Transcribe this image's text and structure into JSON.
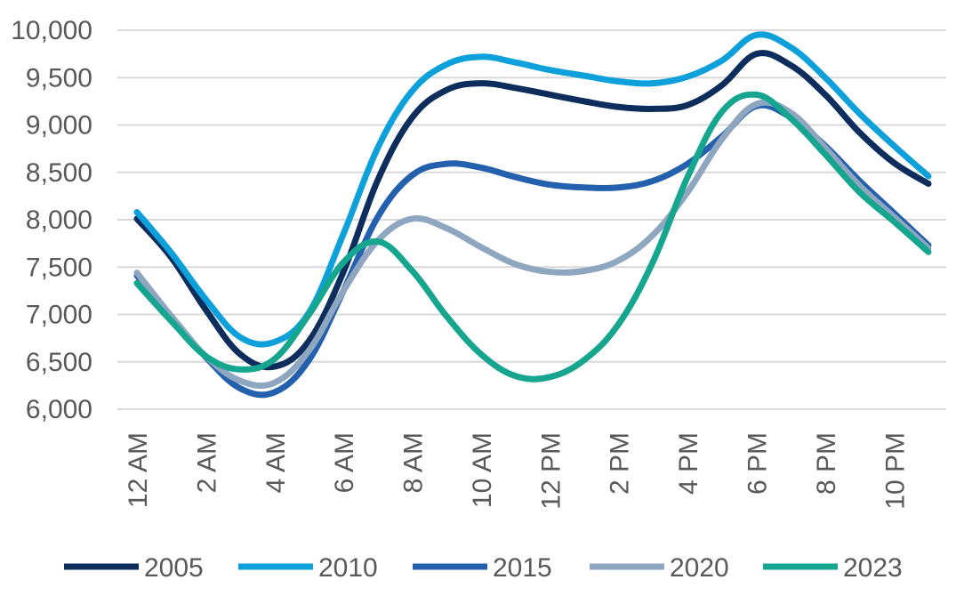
{
  "chart_data": {
    "type": "line",
    "title": "",
    "xlabel": "",
    "ylabel": "",
    "ylim": [
      6000,
      10000
    ],
    "yticks": [
      6000,
      6500,
      7000,
      7500,
      8000,
      8500,
      9000,
      9500,
      10000
    ],
    "ytick_labels": [
      "6,000",
      "6,500",
      "7,000",
      "7,500",
      "8,000",
      "8,500",
      "9,000",
      "9,500",
      "10,000"
    ],
    "x": [
      0,
      1,
      2,
      3,
      4,
      5,
      6,
      7,
      8,
      9,
      10,
      11,
      12,
      13,
      14,
      15,
      16,
      17,
      18,
      19,
      20,
      21,
      22,
      23
    ],
    "xtick_positions": [
      0,
      2,
      4,
      6,
      8,
      10,
      12,
      14,
      16,
      18,
      20,
      22
    ],
    "xtick_labels": [
      "12 AM",
      "2 AM",
      "4 AM",
      "6 AM",
      "8 AM",
      "10 AM",
      "12 PM",
      "2 PM",
      "4 PM",
      "6 PM",
      "8 PM",
      "10 PM"
    ],
    "grid": true,
    "legend_position": "bottom",
    "series": [
      {
        "name": "2005",
        "color": "#0d2d5c",
        "values": [
          8010,
          7600,
          7050,
          6580,
          6450,
          6720,
          7450,
          8420,
          9080,
          9370,
          9440,
          9390,
          9320,
          9250,
          9190,
          9170,
          9210,
          9420,
          9750,
          9630,
          9320,
          8920,
          8600,
          8380
        ]
      },
      {
        "name": "2010",
        "color": "#0ea0db",
        "values": [
          8080,
          7650,
          7160,
          6760,
          6710,
          7020,
          7850,
          8760,
          9360,
          9640,
          9720,
          9660,
          9580,
          9520,
          9460,
          9440,
          9510,
          9680,
          9950,
          9820,
          9500,
          9120,
          8780,
          8460
        ]
      },
      {
        "name": "2015",
        "color": "#2360ad",
        "values": [
          7410,
          6980,
          6550,
          6220,
          6180,
          6520,
          7250,
          8030,
          8470,
          8590,
          8550,
          8450,
          8370,
          8340,
          8340,
          8410,
          8590,
          8880,
          9200,
          9080,
          8780,
          8410,
          8070,
          7730
        ]
      },
      {
        "name": "2020",
        "color": "#8fa6c0",
        "values": [
          7440,
          6980,
          6560,
          6300,
          6280,
          6620,
          7250,
          7780,
          8010,
          7910,
          7710,
          7530,
          7450,
          7460,
          7570,
          7840,
          8290,
          8850,
          9220,
          9130,
          8760,
          8360,
          8030,
          7700
        ]
      },
      {
        "name": "2023",
        "color": "#16a58f",
        "values": [
          7330,
          6930,
          6560,
          6420,
          6530,
          7000,
          7550,
          7770,
          7460,
          6980,
          6580,
          6350,
          6340,
          6520,
          6900,
          7560,
          8450,
          9140,
          9320,
          9070,
          8690,
          8290,
          7980,
          7660
        ]
      }
    ]
  }
}
